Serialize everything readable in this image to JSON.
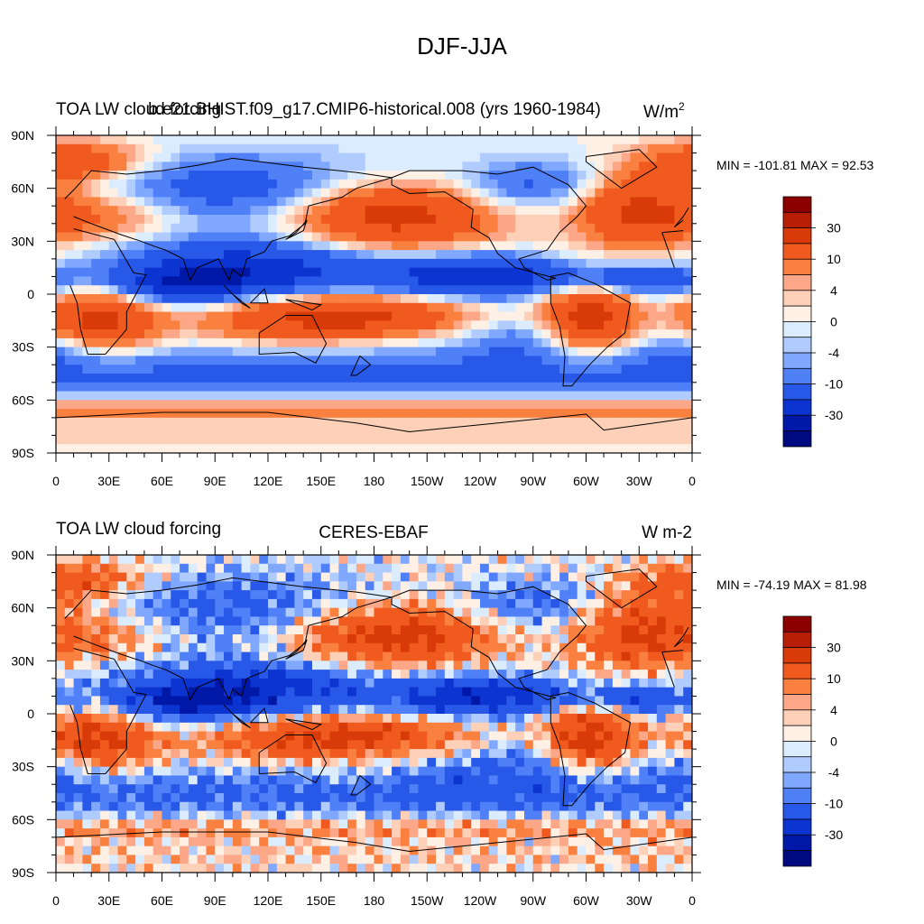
{
  "figure": {
    "title": "DJF-JJA"
  },
  "chart_data": [
    {
      "type": "contour-map",
      "title_left": "TOA LW cloud forcing",
      "title_center": "b.e21.BHIST.f09_g17.CMIP6-historical.008 (yrs 1960-1984)",
      "title_right_base": "W/m",
      "title_right_sup": "2",
      "min_max_text": "MIN = -101.81 MAX =  92.53",
      "min": -101.81,
      "max": 92.53,
      "xlabels": [
        "0",
        "30E",
        "60E",
        "90E",
        "120E",
        "150E",
        "180",
        "150W",
        "120W",
        "90W",
        "60W",
        "30W",
        "0"
      ],
      "ylabels": [
        "90N",
        "60N",
        "30N",
        "0",
        "30S",
        "60S",
        "90S"
      ],
      "colorbar_labels": [
        "30",
        "10",
        "4",
        "0",
        "-4",
        "-10",
        "-30"
      ],
      "variant": 0
    },
    {
      "type": "contour-map",
      "title_left": "TOA LW cloud forcing",
      "title_center": "CERES-EBAF",
      "title_right": "W m-2",
      "min_max_text": "MIN = -74.19 MAX =  81.98",
      "min": -74.19,
      "max": 81.98,
      "xlabels": [
        "0",
        "30E",
        "60E",
        "90E",
        "120E",
        "150E",
        "180",
        "150W",
        "120W",
        "90W",
        "60W",
        "30W",
        "0"
      ],
      "ylabels": [
        "90N",
        "60N",
        "30N",
        "0",
        "30S",
        "60S",
        "90S"
      ],
      "colorbar_labels": [
        "30",
        "10",
        "4",
        "0",
        "-4",
        "-10",
        "-30"
      ],
      "variant": 1
    }
  ],
  "palette": [
    "#8c0000",
    "#b81e05",
    "#d83a08",
    "#f05a1e",
    "#fa8040",
    "#fca888",
    "#fed0b8",
    "#fff0e6",
    "#dcecff",
    "#b0ccff",
    "#80a8ff",
    "#5080f8",
    "#2858e8",
    "#0c34d0",
    "#0018a8",
    "#000a80"
  ]
}
